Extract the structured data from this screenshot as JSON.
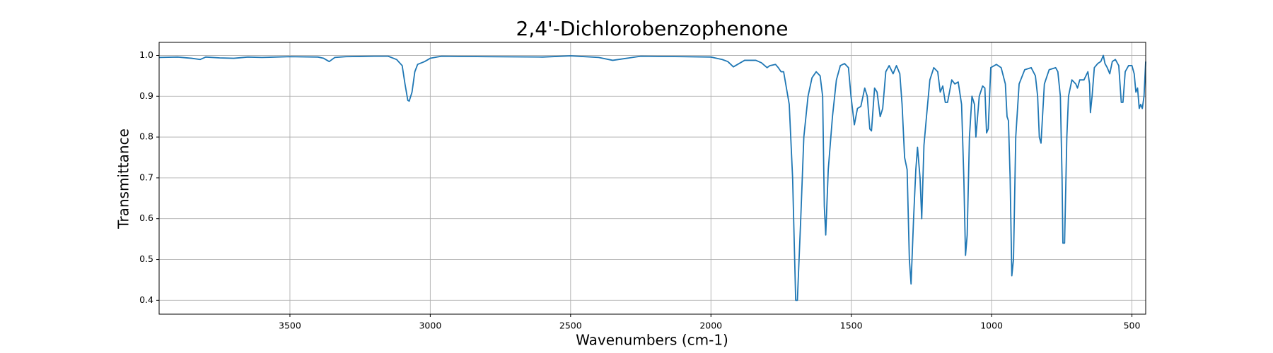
{
  "chart_data": {
    "type": "line",
    "title": "2,4'-Dichlorobenzophenone",
    "xlabel": "Wavenumbers (cm-1)",
    "ylabel": "Transmittance",
    "x": [
      3966,
      3900,
      3850,
      3820,
      3800,
      3750,
      3700,
      3650,
      3600,
      3500,
      3400,
      3380,
      3360,
      3340,
      3300,
      3200,
      3150,
      3120,
      3100,
      3090,
      3080,
      3075,
      3065,
      3055,
      3045,
      3020,
      3000,
      2960,
      2800,
      2600,
      2500,
      2400,
      2350,
      2300,
      2250,
      2100,
      2000,
      1960,
      1940,
      1920,
      1900,
      1880,
      1840,
      1820,
      1800,
      1790,
      1770,
      1760,
      1750,
      1741,
      1721,
      1709,
      1698,
      1692,
      1680,
      1669,
      1654,
      1640,
      1625,
      1611,
      1602,
      1596,
      1591,
      1582,
      1567,
      1553,
      1539,
      1524,
      1510,
      1501,
      1489,
      1478,
      1466,
      1452,
      1443,
      1434,
      1428,
      1417,
      1408,
      1397,
      1388,
      1377,
      1365,
      1351,
      1339,
      1327,
      1319,
      1310,
      1301,
      1293,
      1287,
      1278,
      1270,
      1264,
      1255,
      1249,
      1241,
      1232,
      1220,
      1206,
      1192,
      1183,
      1174,
      1165,
      1157,
      1142,
      1131,
      1119,
      1107,
      1099,
      1093,
      1087,
      1079,
      1070,
      1061,
      1056,
      1044,
      1032,
      1024,
      1018,
      1012,
      1003,
      983,
      966,
      951,
      945,
      940,
      934,
      928,
      922,
      914,
      902,
      882,
      859,
      844,
      836,
      830,
      824,
      812,
      795,
      772,
      764,
      755,
      749,
      746,
      740,
      732,
      726,
      714,
      700,
      694,
      686,
      671,
      657,
      651,
      648,
      642,
      634,
      622,
      611,
      602,
      596,
      588,
      579,
      570,
      559,
      547,
      538,
      532,
      524,
      512,
      500,
      492,
      486,
      480,
      474,
      469,
      463,
      457,
      451
    ],
    "values": [
      0.995,
      0.996,
      0.993,
      0.99,
      0.996,
      0.994,
      0.993,
      0.996,
      0.995,
      0.997,
      0.996,
      0.993,
      0.985,
      0.995,
      0.997,
      0.998,
      0.998,
      0.99,
      0.975,
      0.93,
      0.89,
      0.888,
      0.91,
      0.96,
      0.978,
      0.985,
      0.993,
      0.998,
      0.997,
      0.996,
      0.999,
      0.995,
      0.988,
      0.993,
      0.998,
      0.997,
      0.996,
      0.99,
      0.985,
      0.972,
      0.98,
      0.988,
      0.988,
      0.982,
      0.97,
      0.975,
      0.978,
      0.97,
      0.96,
      0.96,
      0.88,
      0.7,
      0.4,
      0.4,
      0.6,
      0.8,
      0.9,
      0.945,
      0.96,
      0.95,
      0.9,
      0.63,
      0.56,
      0.72,
      0.85,
      0.94,
      0.975,
      0.98,
      0.97,
      0.9,
      0.83,
      0.87,
      0.875,
      0.92,
      0.9,
      0.82,
      0.815,
      0.92,
      0.91,
      0.85,
      0.87,
      0.96,
      0.975,
      0.955,
      0.975,
      0.955,
      0.88,
      0.75,
      0.72,
      0.5,
      0.44,
      0.6,
      0.72,
      0.775,
      0.7,
      0.6,
      0.78,
      0.85,
      0.94,
      0.97,
      0.96,
      0.91,
      0.925,
      0.885,
      0.885,
      0.94,
      0.93,
      0.935,
      0.88,
      0.7,
      0.51,
      0.56,
      0.8,
      0.9,
      0.88,
      0.8,
      0.9,
      0.925,
      0.92,
      0.81,
      0.82,
      0.97,
      0.978,
      0.97,
      0.93,
      0.85,
      0.84,
      0.7,
      0.46,
      0.5,
      0.8,
      0.93,
      0.965,
      0.97,
      0.95,
      0.9,
      0.8,
      0.785,
      0.93,
      0.965,
      0.97,
      0.96,
      0.9,
      0.7,
      0.54,
      0.54,
      0.8,
      0.9,
      0.94,
      0.93,
      0.92,
      0.94,
      0.94,
      0.96,
      0.93,
      0.86,
      0.9,
      0.97,
      0.98,
      0.985,
      1.0,
      0.98,
      0.97,
      0.955,
      0.985,
      0.99,
      0.975,
      0.885,
      0.885,
      0.96,
      0.975,
      0.975,
      0.955,
      0.91,
      0.92,
      0.87,
      0.88,
      0.87,
      0.9,
      0.985
    ],
    "color": "#1f77b4",
    "xlim": [
      3966,
      451
    ],
    "ylim": [
      0.366,
      1.032
    ],
    "xticks": [
      3500,
      3000,
      2500,
      2000,
      1500,
      1000,
      500
    ],
    "yticks": [
      0.4,
      0.5,
      0.6,
      0.7,
      0.8,
      0.9,
      {
        "value": 1,
        "label": "1.0"
      }
    ],
    "grid": true
  }
}
